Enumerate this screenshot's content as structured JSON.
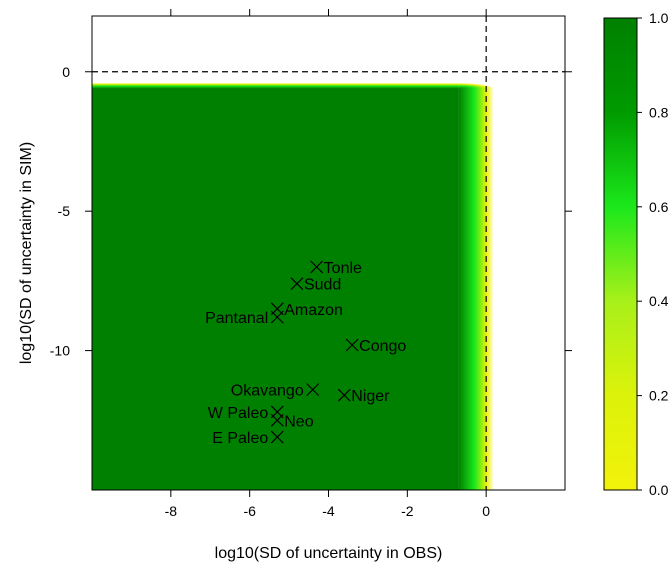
{
  "chart_data": {
    "type": "heatmap",
    "title": "",
    "xlabel": "log10(SD of uncertainty in OBS)",
    "ylabel": "log10(SD of uncertainty in SIM)",
    "xlim": [
      -10,
      2
    ],
    "ylim": [
      -15,
      2
    ],
    "x_ticks": [
      -8,
      -6,
      -4,
      -2,
      0
    ],
    "y_ticks": [
      0,
      -5,
      -10
    ],
    "reference_lines": {
      "x": 0,
      "y": 0,
      "style": "dashed"
    },
    "heatmap": {
      "description_region": "value ~1.0 for x < -0.7 and y < -0.6, falling to ~0 past x = 0.2 and y = -0.4",
      "plateau_x_max": -0.7,
      "plateau_y_max": -0.6,
      "edge_x_max": 0.2,
      "edge_y_max": -0.4
    },
    "colorbar": {
      "range": [
        0,
        1
      ],
      "ticks": [
        "0.0",
        "0.2",
        "0.4",
        "0.6",
        "0.8",
        "1.0"
      ],
      "low_color": "#f2f20a",
      "mid_color": "#1be81b",
      "high_color": "#008000"
    },
    "points": [
      {
        "label": "Tonle",
        "x": -4.3,
        "y": -7.0,
        "label_side": "right"
      },
      {
        "label": "Sudd",
        "x": -4.8,
        "y": -7.6,
        "label_side": "right"
      },
      {
        "label": "Amazon",
        "x": -5.3,
        "y": -8.5,
        "label_side": "right"
      },
      {
        "label": "Pantanal",
        "x": -5.3,
        "y": -8.8,
        "label_side": "left"
      },
      {
        "label": "Congo",
        "x": -3.4,
        "y": -9.8,
        "label_side": "right"
      },
      {
        "label": "Okavango",
        "x": -4.4,
        "y": -11.4,
        "label_side": "left"
      },
      {
        "label": "Niger",
        "x": -3.6,
        "y": -11.6,
        "label_side": "right"
      },
      {
        "label": "W Paleo",
        "x": -5.3,
        "y": -12.2,
        "label_side": "left"
      },
      {
        "label": "Neo",
        "x": -5.3,
        "y": -12.5,
        "label_side": "right"
      },
      {
        "label": "E Paleo",
        "x": -5.3,
        "y": -13.1,
        "label_side": "left"
      }
    ]
  }
}
